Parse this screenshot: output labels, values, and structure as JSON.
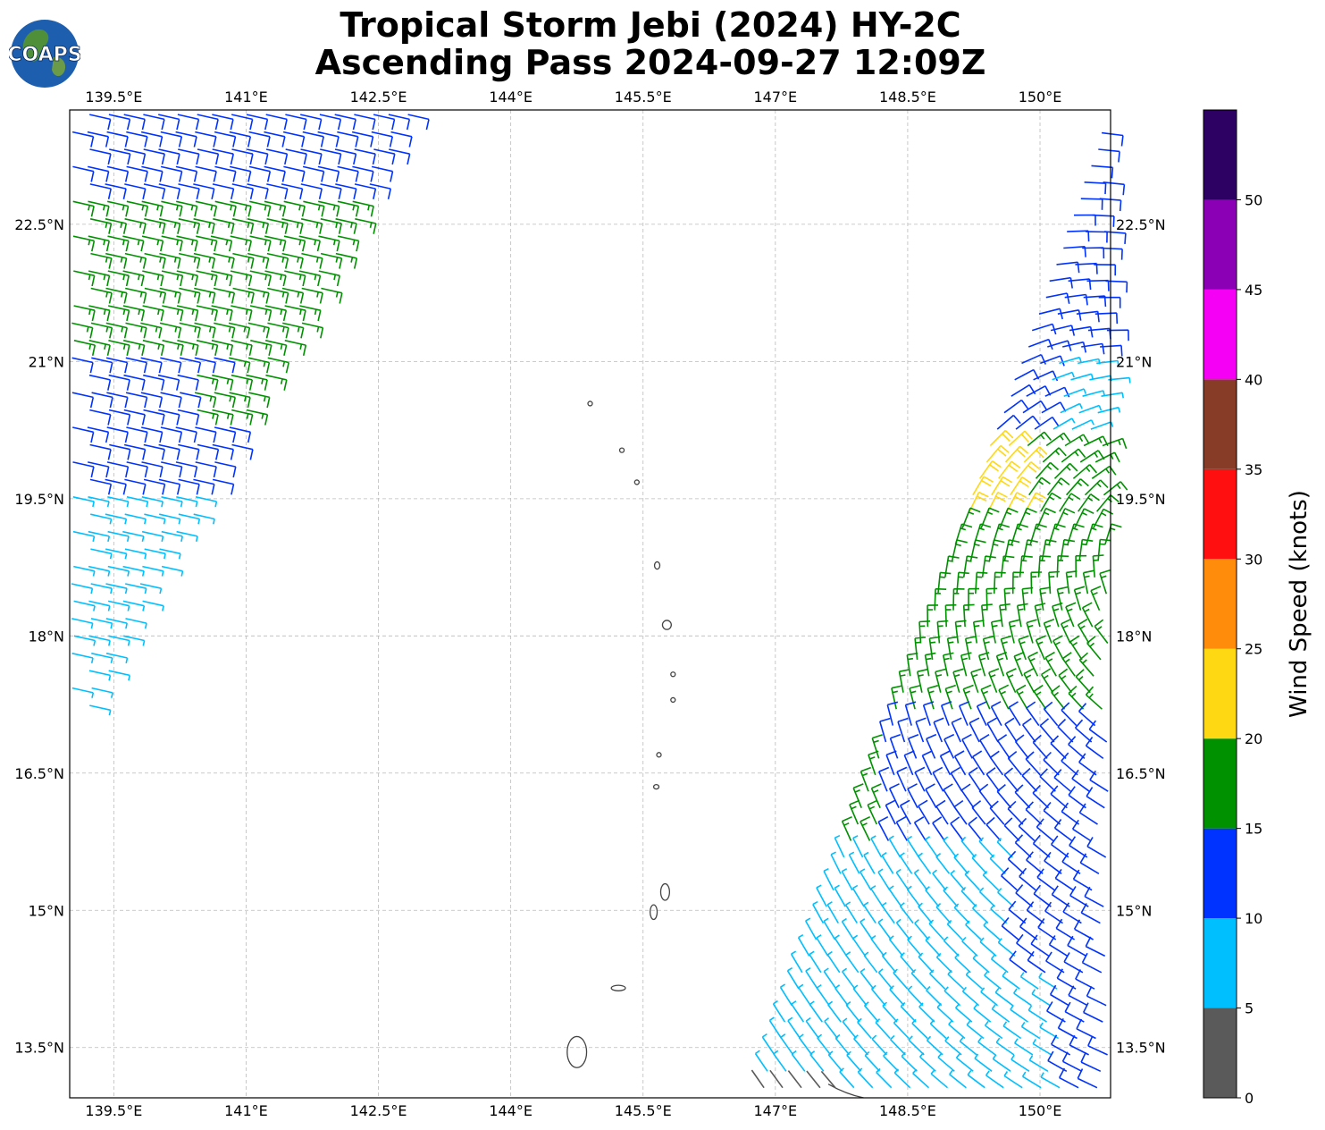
{
  "title": {
    "line1": "Tropical Storm Jebi (2024) HY-2C",
    "line2": "Ascending Pass 2024-09-27 12:09Z"
  },
  "logo": {
    "text": "COAPS",
    "icon": "globe-logo-icon"
  },
  "map": {
    "projection": "plate-carree",
    "lon_range": [
      139.0,
      150.8
    ],
    "lat_range": [
      12.95,
      23.75
    ],
    "lon_ticks": [
      "139.5°E",
      "141°E",
      "142.5°E",
      "144°E",
      "145.5°E",
      "147°E",
      "148.5°E",
      "150°E"
    ],
    "lat_ticks": [
      "22.5°N",
      "21°N",
      "19.5°N",
      "18°N",
      "16.5°N",
      "15°N",
      "13.5°N"
    ],
    "lon_tick_values": [
      139.5,
      141,
      142.5,
      144,
      145.5,
      147,
      148.5,
      150
    ],
    "lat_tick_values": [
      22.5,
      21,
      19.5,
      18,
      16.5,
      15,
      13.5
    ],
    "gridlines": true,
    "coastline_color": "#444444",
    "islands": [
      "Guam",
      "Rota",
      "Tinian",
      "Saipan",
      "Anatahan",
      "Sarigan",
      "Guguan",
      "Alamagan",
      "Pagan",
      "Agrihan",
      "Asuncion",
      "Maug",
      "Farallon de Pajaros"
    ]
  },
  "colorbar": {
    "label": "Wind Speed (knots)",
    "tick_labels": [
      "0",
      "5",
      "10",
      "15",
      "20",
      "25",
      "30",
      "35",
      "40",
      "45",
      "50"
    ],
    "bins": [
      {
        "min": 0,
        "max": 5,
        "color": "#5a5a5a"
      },
      {
        "min": 5,
        "max": 10,
        "color": "#00bfff"
      },
      {
        "min": 10,
        "max": 15,
        "color": "#0033ff"
      },
      {
        "min": 15,
        "max": 20,
        "color": "#009100"
      },
      {
        "min": 20,
        "max": 25,
        "color": "#ffd814"
      },
      {
        "min": 25,
        "max": 30,
        "color": "#ff8c0a"
      },
      {
        "min": 30,
        "max": 35,
        "color": "#ff0f0f"
      },
      {
        "min": 35,
        "max": 40,
        "color": "#873c28"
      },
      {
        "min": 40,
        "max": 45,
        "color": "#f500f5"
      },
      {
        "min": 45,
        "max": 50,
        "color": "#8b00b4"
      },
      {
        "min": 50,
        "max": 55,
        "color": "#2d0064"
      }
    ]
  },
  "wind_swaths": [
    {
      "side": "west",
      "direction": "east-northeast flow, barbs from WSW",
      "speed_range_knots": [
        5,
        20
      ]
    },
    {
      "side": "east",
      "direction": "cyclonic flow around Tropical Storm Jebi",
      "speed_range_knots": [
        0,
        25
      ]
    }
  ]
}
